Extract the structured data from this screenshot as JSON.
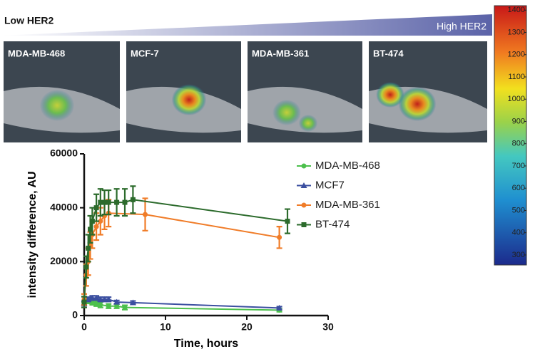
{
  "header": {
    "low": "Low HER2",
    "high": "High HER2"
  },
  "panels": [
    "MDA-MB-468",
    "MCF-7",
    "MDA-MB-361",
    "BT-474"
  ],
  "colorbar": {
    "lim": [
      255,
      1420
    ],
    "ticks": [
      300,
      400,
      500,
      600,
      700,
      800,
      900,
      1000,
      1100,
      1200,
      1300,
      1400
    ]
  },
  "chart_data": {
    "type": "line",
    "xlabel": "Time, hours",
    "ylabel": "intensity difference, AU",
    "xlim": [
      0,
      30
    ],
    "xticks": [
      0,
      10,
      20,
      30
    ],
    "ylim": [
      0,
      60000
    ],
    "yticks": [
      0,
      20000,
      40000,
      60000
    ],
    "series": [
      {
        "name": "MDA-MB-468",
        "color": "#4cc04c",
        "marker": "circle",
        "x": [
          0,
          0.5,
          1,
          1.5,
          2,
          3,
          4,
          5,
          24
        ],
        "values": [
          6000,
          5500,
          5000,
          4500,
          4000,
          3500,
          3500,
          3000,
          2000
        ],
        "errors": [
          1000,
          1000,
          1000,
          1000,
          1000,
          800,
          800,
          800,
          600
        ]
      },
      {
        "name": "MCF7",
        "color": "#3b4fa0",
        "marker": "triangle",
        "x": [
          0,
          0.5,
          1,
          1.5,
          2,
          2.5,
          3,
          4,
          6,
          24
        ],
        "values": [
          4500,
          6000,
          6500,
          6500,
          6000,
          6000,
          6000,
          5000,
          4800,
          2800
        ],
        "errors": [
          800,
          800,
          800,
          800,
          800,
          800,
          800,
          600,
          600,
          500
        ]
      },
      {
        "name": "MDA-MB-361",
        "color": "#f07c28",
        "marker": "circle",
        "x": [
          0,
          0.25,
          0.5,
          0.75,
          1,
          1.5,
          2,
          2.5,
          3,
          7.5,
          24
        ],
        "values": [
          6000,
          15000,
          20000,
          26000,
          30000,
          33000,
          35000,
          37000,
          38000,
          37500,
          29000
        ],
        "errors": [
          2000,
          4000,
          5000,
          5000,
          5000,
          5000,
          5000,
          5000,
          5000,
          6000,
          4000
        ]
      },
      {
        "name": "BT-474",
        "color": "#2c6b2c",
        "marker": "square",
        "x": [
          0,
          0.25,
          0.5,
          0.75,
          1,
          1.5,
          2,
          2.5,
          3,
          4,
          5,
          6,
          25
        ],
        "values": [
          5000,
          18000,
          25000,
          32000,
          35000,
          40000,
          42000,
          42000,
          42000,
          42000,
          42000,
          43000,
          35000
        ],
        "errors": [
          2000,
          4000,
          5000,
          5000,
          5000,
          5000,
          5000,
          4500,
          4500,
          5000,
          5000,
          5000,
          4500
        ]
      }
    ]
  }
}
